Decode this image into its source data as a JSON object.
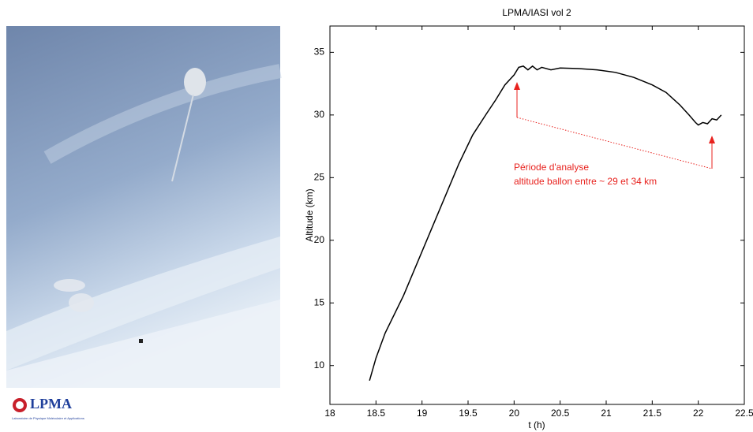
{
  "chart_data": {
    "type": "line",
    "title": "LPMA/IASI vol 2",
    "x_label": "t (h)",
    "y_label": "Altitude (km)",
    "x": [
      18.43,
      18.5,
      18.6,
      18.8,
      19.0,
      19.2,
      19.4,
      19.55,
      19.7,
      19.8,
      19.9,
      20.0,
      20.05,
      20.1,
      20.15,
      20.2,
      20.25,
      20.3,
      20.4,
      20.5,
      20.7,
      20.9,
      21.1,
      21.3,
      21.5,
      21.65,
      21.8,
      21.9,
      21.97,
      22.0,
      22.05,
      22.1,
      22.15,
      22.2,
      22.25
    ],
    "values": [
      8.8,
      10.6,
      12.6,
      15.6,
      19.1,
      22.6,
      26.1,
      28.4,
      30.1,
      31.2,
      32.4,
      33.2,
      33.8,
      33.9,
      33.6,
      33.9,
      33.6,
      33.8,
      33.6,
      33.75,
      33.7,
      33.6,
      33.4,
      33.0,
      32.4,
      31.8,
      30.8,
      30.0,
      29.4,
      29.2,
      29.4,
      29.3,
      29.7,
      29.6,
      30.0
    ],
    "color": "#000000",
    "xlim": [
      18,
      22.5
    ],
    "xticks": [
      18,
      18.5,
      19,
      19.5,
      20,
      20.5,
      21,
      21.5,
      22,
      22.5
    ],
    "ylim": [
      6.9,
      37.1
    ],
    "yticks": [
      10,
      15,
      20,
      25,
      30,
      35
    ],
    "annotations": [
      "Période d'analyse",
      "altitude ballon entre ~ 29 et 34 km"
    ],
    "annotation_color": "#e8221e"
  },
  "logo": {
    "name": "LPMA",
    "caption": "Laboratoire de Physique Moléculaire et Applications"
  }
}
